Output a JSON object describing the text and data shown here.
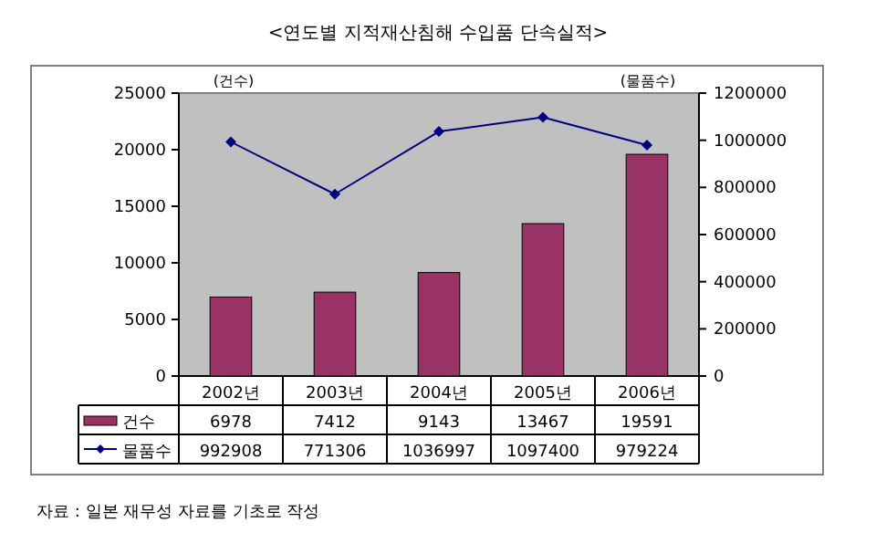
{
  "chart_data": {
    "type": "bar",
    "title": "<연도별 지적재산침해 수입품 단속실적>",
    "ylabel": "(건수)",
    "y2label": "(물품수)",
    "categories": [
      "2002년",
      "2003년",
      "2004년",
      "2005년",
      "2006년"
    ],
    "series": [
      {
        "name": "건수",
        "color": "#993366",
        "values": [
          6978,
          7412,
          9143,
          13467,
          19591
        ]
      },
      {
        "name": "물품수",
        "type": "line",
        "axis": "y2",
        "color": "#000080",
        "marker": "diamond",
        "values": [
          992908,
          771306,
          1036997,
          1097400,
          979224
        ]
      }
    ],
    "ylim": [
      0,
      25000
    ],
    "yticks": [
      0,
      5000,
      10000,
      15000,
      20000,
      25000
    ],
    "y2lim": [
      0,
      1200000
    ],
    "y2ticks": [
      0,
      200000,
      400000,
      600000,
      800000,
      1000000,
      1200000
    ],
    "grid": false,
    "legend": "bottom",
    "data_labels": true,
    "annotations": [
      "자료 : 일본 재무성 자료를 기초로 작성"
    ]
  }
}
